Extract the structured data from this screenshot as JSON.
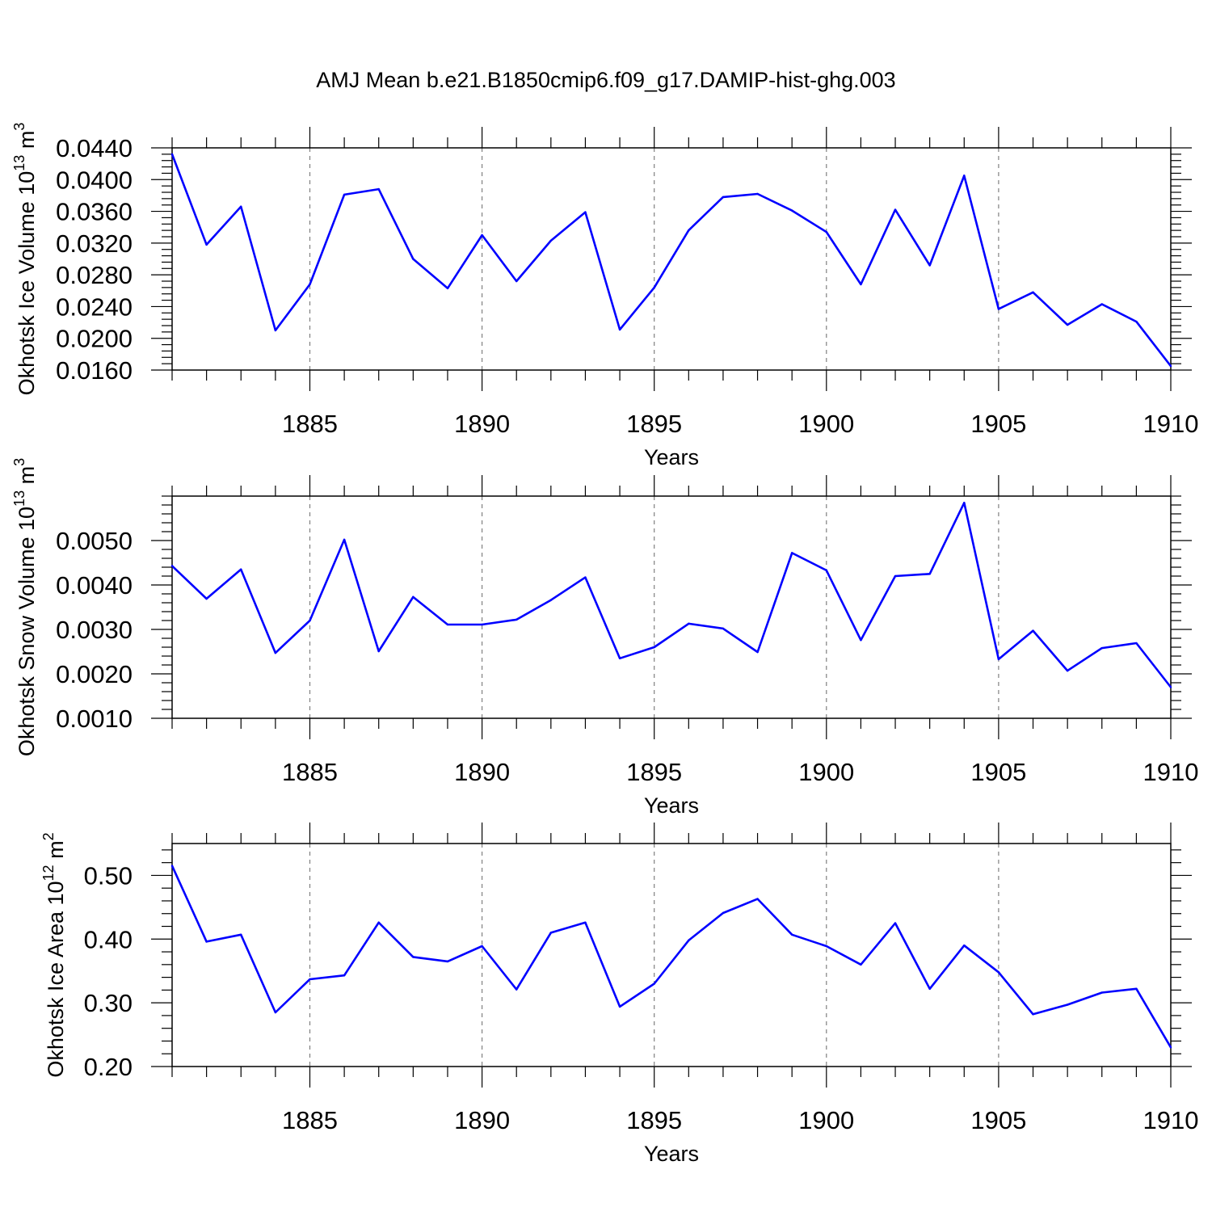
{
  "figure_title": "AMJ Mean b.e21.B1850cmip6.f09_g17.DAMIP-hist-ghg.003",
  "colors": {
    "line": "#0000ff",
    "axis": "#000000",
    "grid": "#808080"
  },
  "chart_data": [
    {
      "type": "line",
      "title": "AMJ Mean b.e21.B1850cmip6.f09_g17.DAMIP-hist-ghg.003",
      "ylabel": {
        "main": "Okhotsk Ice Volume 10",
        "exp": "13",
        "unit": " m",
        "unit_exp": "3"
      },
      "xlabel": "Years",
      "xlim": [
        1881,
        1910
      ],
      "ylim": [
        0.016,
        0.044
      ],
      "yticks": [
        0.016,
        0.02,
        0.024,
        0.028,
        0.032,
        0.036,
        0.04,
        0.044
      ],
      "ytick_labels": [
        "0.0160",
        "0.0200",
        "0.0240",
        "0.0280",
        "0.0320",
        "0.0360",
        "0.0400",
        "0.0440"
      ],
      "yminor_step": 0.0008,
      "xticks": [
        1885,
        1890,
        1895,
        1900,
        1905,
        1910
      ],
      "xtick_labels": [
        "1885",
        "1890",
        "1895",
        "1900",
        "1905",
        "1910"
      ],
      "x": [
        1881,
        1882,
        1883,
        1884,
        1885,
        1886,
        1887,
        1888,
        1889,
        1890,
        1891,
        1892,
        1893,
        1894,
        1895,
        1896,
        1897,
        1898,
        1899,
        1900,
        1901,
        1902,
        1903,
        1904,
        1905,
        1906,
        1907,
        1908,
        1909,
        1910
      ],
      "series": [
        {
          "name": "Okhotsk Ice Volume",
          "values": [
            0.0432,
            0.0318,
            0.0366,
            0.021,
            0.0268,
            0.0381,
            0.0388,
            0.03,
            0.0263,
            0.033,
            0.0272,
            0.0323,
            0.0359,
            0.0211,
            0.0264,
            0.0336,
            0.0378,
            0.0382,
            0.0361,
            0.0334,
            0.0268,
            0.0362,
            0.0292,
            0.0405,
            0.0237,
            0.0258,
            0.0217,
            0.0243,
            0.0221,
            0.0165
          ]
        }
      ]
    },
    {
      "type": "line",
      "ylabel": {
        "main": "Okhotsk Snow Volume 10",
        "exp": "13",
        "unit": " m",
        "unit_exp": "3"
      },
      "xlabel": "Years",
      "xlim": [
        1881,
        1910
      ],
      "ylim": [
        0.001,
        0.006
      ],
      "yticks": [
        0.001,
        0.002,
        0.003,
        0.004,
        0.005
      ],
      "ytick_labels": [
        "0.0010",
        "0.0020",
        "0.0030",
        "0.0040",
        "0.0050"
      ],
      "yminor_step": 0.0002,
      "xticks": [
        1885,
        1890,
        1895,
        1900,
        1905,
        1910
      ],
      "xtick_labels": [
        "1885",
        "1890",
        "1895",
        "1900",
        "1905",
        "1910"
      ],
      "x": [
        1881,
        1882,
        1883,
        1884,
        1885,
        1886,
        1887,
        1888,
        1889,
        1890,
        1891,
        1892,
        1893,
        1894,
        1895,
        1896,
        1897,
        1898,
        1899,
        1900,
        1901,
        1902,
        1903,
        1904,
        1905,
        1906,
        1907,
        1908,
        1909,
        1910
      ],
      "series": [
        {
          "name": "Okhotsk Snow Volume",
          "values": [
            0.00443,
            0.00369,
            0.00435,
            0.00247,
            0.0032,
            0.00502,
            0.00251,
            0.00373,
            0.00311,
            0.00311,
            0.00322,
            0.00366,
            0.00417,
            0.00235,
            0.0026,
            0.00313,
            0.00302,
            0.00249,
            0.00472,
            0.00433,
            0.00276,
            0.0042,
            0.00425,
            0.00585,
            0.00233,
            0.00297,
            0.00207,
            0.00258,
            0.00269,
            0.0017
          ]
        }
      ]
    },
    {
      "type": "line",
      "ylabel": {
        "main": "Okhotsk Ice Area 10",
        "exp": "12",
        "unit": " m",
        "unit_exp": "2"
      },
      "xlabel": "Years",
      "xlim": [
        1881,
        1910
      ],
      "ylim": [
        0.2,
        0.55
      ],
      "yticks": [
        0.2,
        0.3,
        0.4,
        0.5
      ],
      "ytick_labels": [
        "0.20",
        "0.30",
        "0.40",
        "0.50"
      ],
      "yminor_step": 0.02,
      "xticks": [
        1885,
        1890,
        1895,
        1900,
        1905,
        1910
      ],
      "xtick_labels": [
        "1885",
        "1890",
        "1895",
        "1900",
        "1905",
        "1910"
      ],
      "x": [
        1881,
        1882,
        1883,
        1884,
        1885,
        1886,
        1887,
        1888,
        1889,
        1890,
        1891,
        1892,
        1893,
        1894,
        1895,
        1896,
        1897,
        1898,
        1899,
        1900,
        1901,
        1902,
        1903,
        1904,
        1905,
        1906,
        1907,
        1908,
        1909,
        1910
      ],
      "series": [
        {
          "name": "Okhotsk Ice Area",
          "values": [
            0.515,
            0.396,
            0.407,
            0.285,
            0.337,
            0.343,
            0.426,
            0.372,
            0.365,
            0.389,
            0.321,
            0.41,
            0.426,
            0.294,
            0.33,
            0.398,
            0.441,
            0.463,
            0.407,
            0.389,
            0.36,
            0.425,
            0.322,
            0.39,
            0.348,
            0.282,
            0.297,
            0.316,
            0.322,
            0.23
          ]
        }
      ]
    }
  ]
}
